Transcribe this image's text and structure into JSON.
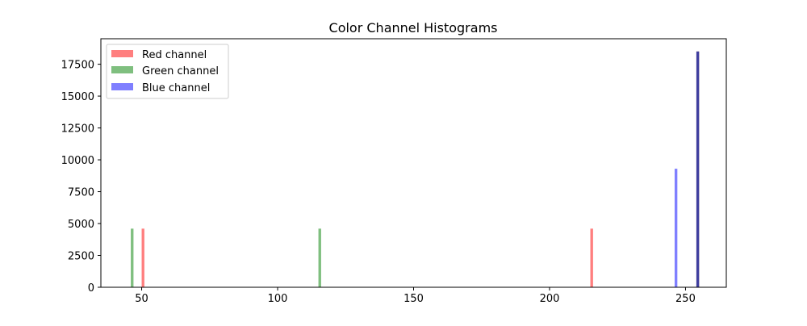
{
  "chart_data": {
    "type": "histogram",
    "title": "Color Channel Histograms",
    "xlabel": "",
    "ylabel": "",
    "xlim": [
      35,
      265
    ],
    "ylim": [
      0,
      19500
    ],
    "xticks": [
      50,
      100,
      150,
      200,
      250
    ],
    "yticks": [
      0,
      2500,
      5000,
      7500,
      10000,
      12500,
      15000,
      17500
    ],
    "bar_width": 0.996,
    "grid": false,
    "legend": {
      "placement": "top-left",
      "entries": [
        "Red channel",
        "Green channel",
        "Blue channel"
      ]
    },
    "series": [
      {
        "name": "Red channel",
        "color": "#ff0000",
        "alpha": 0.5,
        "bins": [
          {
            "x": 50,
            "count": 4600
          },
          {
            "x": 215,
            "count": 4600
          },
          {
            "x": 254,
            "count": 18500
          }
        ]
      },
      {
        "name": "Green channel",
        "color": "#008000",
        "alpha": 0.5,
        "bins": [
          {
            "x": 46,
            "count": 4600
          },
          {
            "x": 115,
            "count": 4600
          },
          {
            "x": 254,
            "count": 18500
          }
        ]
      },
      {
        "name": "Blue channel",
        "color": "#0000ff",
        "alpha": 0.5,
        "bins": [
          {
            "x": 246,
            "count": 9300
          },
          {
            "x": 254,
            "count": 18500
          }
        ]
      }
    ]
  }
}
